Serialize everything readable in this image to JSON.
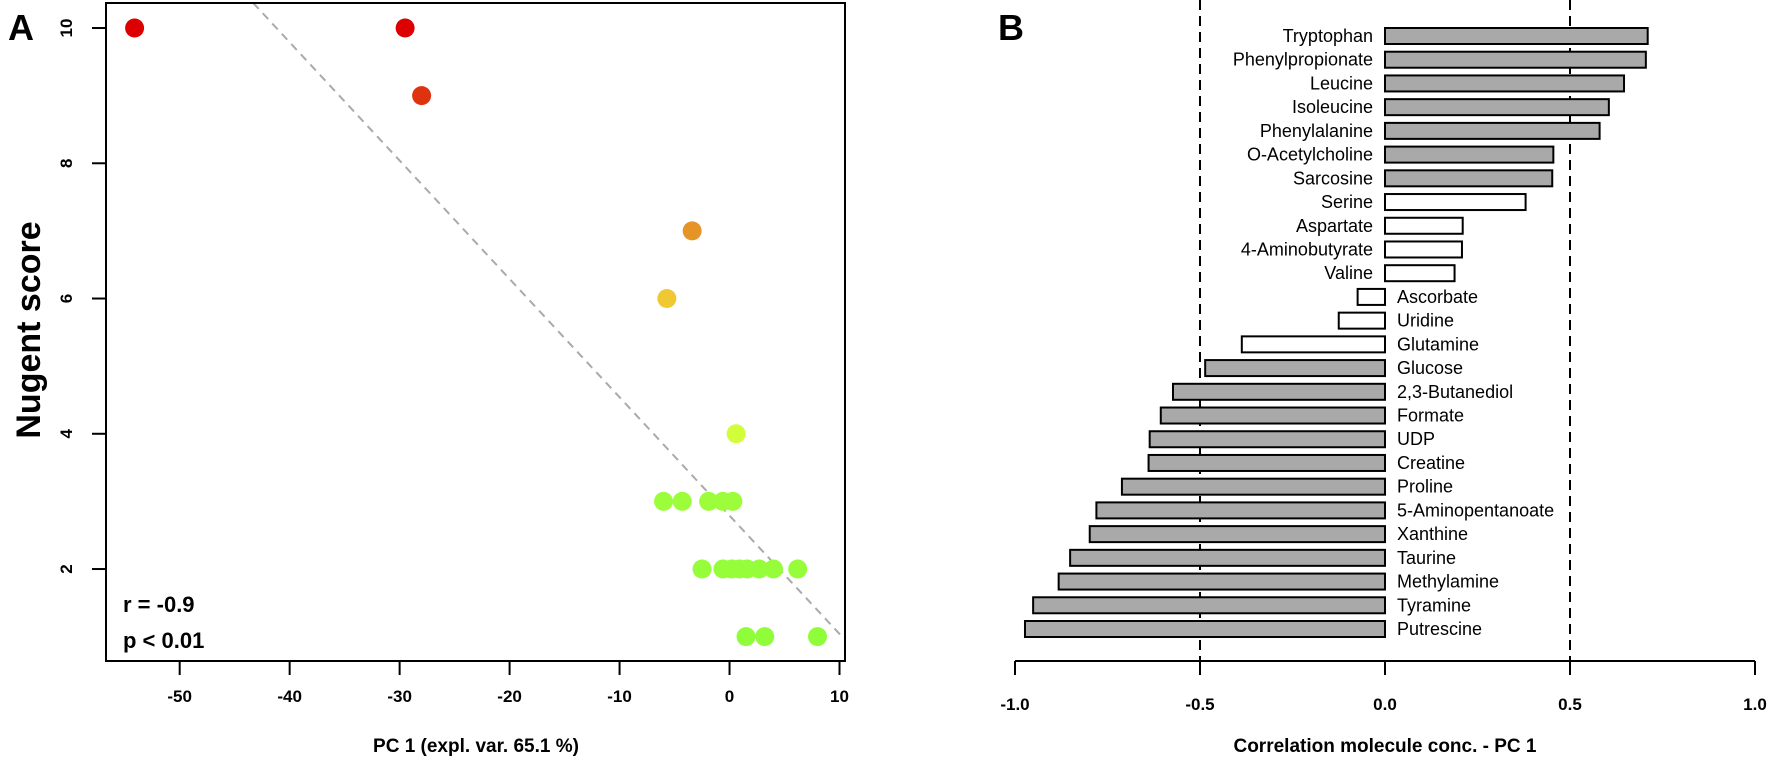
{
  "chart_data": [
    {
      "type": "scatter",
      "panel_label": "A",
      "title": "",
      "xlabel": "PC 1 (expl. var. 65.1 %)",
      "ylabel": "Nugent score",
      "xlim": [
        -56.7,
        10.5
      ],
      "ylim": [
        0.64,
        10.37
      ],
      "xticks": [
        -50,
        -40,
        -30,
        -20,
        -10,
        0,
        10
      ],
      "yticks": [
        2,
        4,
        6,
        8,
        10
      ],
      "grid": false,
      "annotations": [
        "r = -0.9",
        "p < 0.01"
      ],
      "regression_line": {
        "slope": -0.175,
        "intercept": 2.79,
        "color": "#aaaaaa",
        "style": "dashed"
      },
      "points": [
        {
          "x": -54.1,
          "y": 10,
          "color": "#dd0000"
        },
        {
          "x": -29.5,
          "y": 10,
          "color": "#dd0000"
        },
        {
          "x": -28.0,
          "y": 9,
          "color": "#dd3311"
        },
        {
          "x": -3.4,
          "y": 7,
          "color": "#e59528"
        },
        {
          "x": -5.7,
          "y": 6,
          "color": "#f0c832"
        },
        {
          "x": 0.6,
          "y": 4,
          "color": "#d2fd3a"
        },
        {
          "x": -6.0,
          "y": 3,
          "color": "#9cfd3a"
        },
        {
          "x": -4.3,
          "y": 3,
          "color": "#9cfd3a"
        },
        {
          "x": -1.9,
          "y": 3,
          "color": "#9cfd3a"
        },
        {
          "x": -0.6,
          "y": 3,
          "color": "#9cfd3a"
        },
        {
          "x": 0.3,
          "y": 3,
          "color": "#9cfd3a"
        },
        {
          "x": -2.5,
          "y": 2,
          "color": "#96fd3a"
        },
        {
          "x": -0.6,
          "y": 2,
          "color": "#96fd3a"
        },
        {
          "x": 0.2,
          "y": 2,
          "color": "#96fd3a"
        },
        {
          "x": 0.9,
          "y": 2,
          "color": "#96fd3a"
        },
        {
          "x": 1.6,
          "y": 2,
          "color": "#96fd3a"
        },
        {
          "x": 2.7,
          "y": 2,
          "color": "#96fd3a"
        },
        {
          "x": 4.0,
          "y": 2,
          "color": "#96fd3a"
        },
        {
          "x": 6.2,
          "y": 2,
          "color": "#96fd3a"
        },
        {
          "x": 1.5,
          "y": 1,
          "color": "#8ffd3a"
        },
        {
          "x": 3.2,
          "y": 1,
          "color": "#8ffd3a"
        },
        {
          "x": 8.0,
          "y": 1,
          "color": "#8ffd3a"
        }
      ]
    },
    {
      "type": "bar",
      "orientation": "horizontal",
      "panel_label": "B",
      "title": "",
      "xlabel": "Correlation molecule conc. - PC 1",
      "ylabel": "",
      "xlim": [
        -1.0,
        1.0
      ],
      "xticks": [
        "-1.0",
        "-0.5",
        "0.0",
        "0.5",
        "1.0"
      ],
      "xtick_values": [
        -1.0,
        -0.5,
        0.0,
        0.5,
        1.0
      ],
      "reference_lines": [
        -0.5,
        0.5
      ],
      "grid": false,
      "fill_significant": "#a9a9a9",
      "fill_nonsignificant": "#ffffff",
      "categories": [
        "Tryptophan",
        "Phenylpropionate",
        "Leucine",
        "Isoleucine",
        "Phenylalanine",
        "O-Acetylcholine",
        "Sarcosine",
        "Serine",
        "Aspartate",
        "4-Aminobutyrate",
        "Valine",
        "Ascorbate",
        "Uridine",
        "Glutamine",
        "Glucose",
        "2,3-Butanediol",
        "Formate",
        "UDP",
        "Creatine",
        "Proline",
        "5-Aminopentanoate",
        "Xanthine",
        "Taurine",
        "Methylamine",
        "Tyramine",
        "Putrescine"
      ],
      "values": [
        0.71,
        0.705,
        0.646,
        0.605,
        0.58,
        0.455,
        0.452,
        0.38,
        0.21,
        0.208,
        0.188,
        -0.074,
        -0.125,
        -0.387,
        -0.486,
        -0.573,
        -0.606,
        -0.636,
        -0.639,
        -0.711,
        -0.78,
        -0.798,
        -0.851,
        -0.882,
        -0.951,
        -0.973
      ],
      "significant": [
        true,
        true,
        true,
        true,
        true,
        true,
        true,
        false,
        false,
        false,
        false,
        false,
        false,
        false,
        true,
        true,
        true,
        true,
        true,
        true,
        true,
        true,
        true,
        true,
        true,
        true
      ]
    }
  ]
}
